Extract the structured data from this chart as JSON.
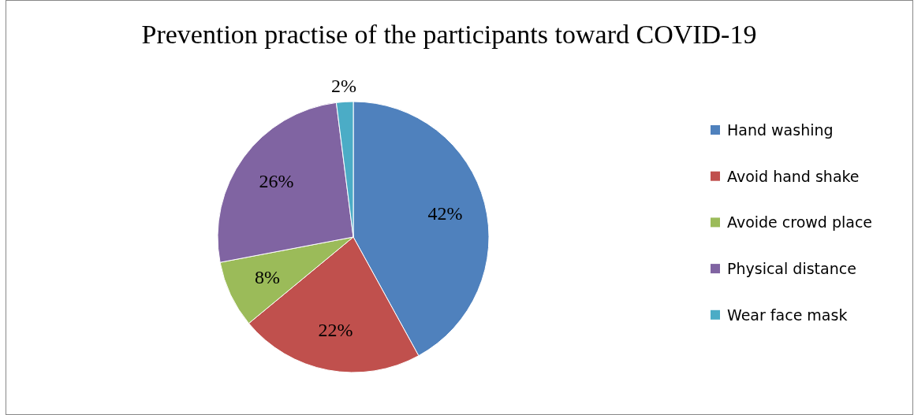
{
  "chart_data": {
    "type": "pie",
    "title": "Prevention practise of the participants toward COVID-19",
    "categories": [
      "Hand washing",
      "Avoid hand shake",
      "Avoide crowd place",
      "Physical distance",
      "Wear face mask"
    ],
    "values": [
      42,
      22,
      8,
      26,
      2
    ],
    "colors": [
      "#4f81bd",
      "#c0504d",
      "#9bbb59",
      "#8064a2",
      "#4bacc6"
    ],
    "value_labels": [
      "42%",
      "22%",
      "8%",
      "26%",
      "2%"
    ],
    "legend": "right"
  }
}
